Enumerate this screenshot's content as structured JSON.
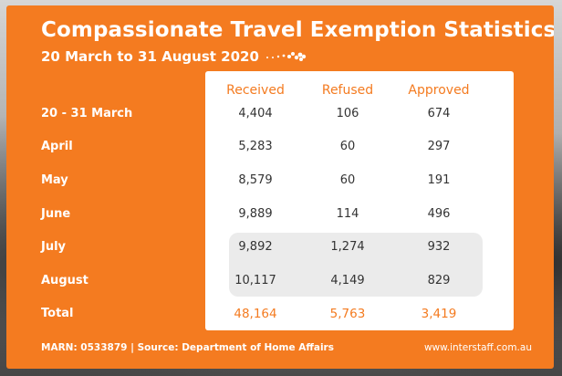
{
  "header": {
    "title": "Compassionate Travel Exemption Statistics |",
    "subtitle": "20 March to 31 August 2020"
  },
  "colors": {
    "brand_orange": "#f47b20",
    "panel_white": "#ffffff",
    "highlight_gray": "#ebebeb",
    "text_dark": "#333333"
  },
  "chart_data": {
    "type": "table",
    "title": "Compassionate Travel Exemption Statistics | 20 March to 31 August 2020",
    "columns": [
      "Received",
      "Refused",
      "Approved"
    ],
    "rows": [
      {
        "label": "20 - 31 March",
        "values": [
          "4,404",
          "106",
          "674"
        ]
      },
      {
        "label": "April",
        "values": [
          "5,283",
          "60",
          "297"
        ]
      },
      {
        "label": "May",
        "values": [
          "8,579",
          "60",
          "191"
        ]
      },
      {
        "label": "June",
        "values": [
          "9,889",
          "114",
          "496"
        ]
      },
      {
        "label": "July",
        "values": [
          "9,892",
          "1,274",
          "932"
        ]
      },
      {
        "label": "August",
        "values": [
          "10,117",
          "4,149",
          "829"
        ]
      }
    ],
    "total": {
      "label": "Total",
      "values": [
        "48,164",
        "5,763",
        "3,419"
      ]
    },
    "highlighted_rows": [
      "July",
      "August"
    ]
  },
  "footer": {
    "source": "MARN: 0533879 | Source: Department of Home Affairs",
    "website": "www.interstaff.com.au"
  }
}
